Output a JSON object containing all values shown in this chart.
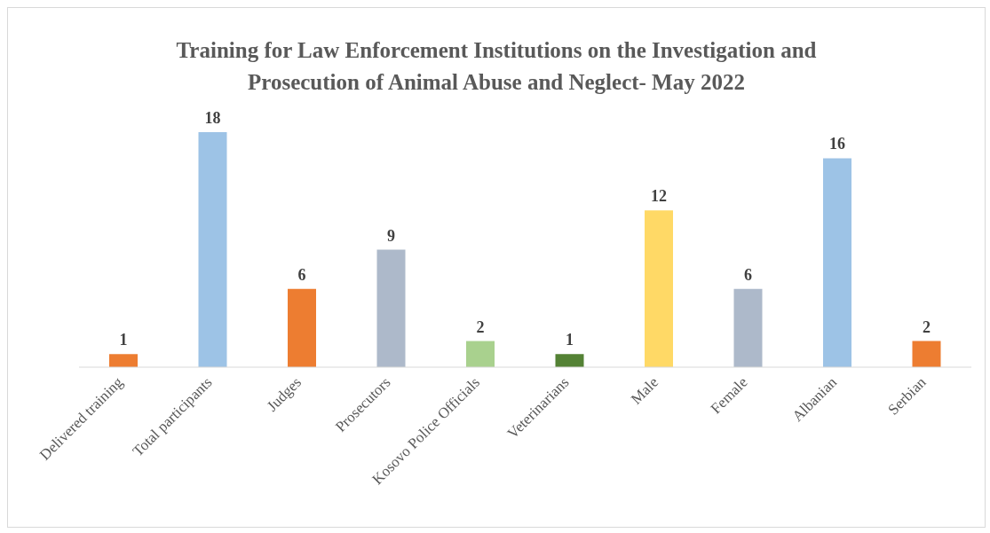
{
  "chart_data": {
    "type": "bar",
    "title": "Training for Law Enforcement Institutions on the Investigation and Prosecution of Animal Abuse and Neglect- May 2022",
    "categories": [
      "Delivered training",
      "Total participants",
      "Judges",
      "Prosecutors",
      "Kosovo Police Officials",
      "Veterinarians",
      "Male",
      "Female",
      "Albanian",
      "Serbian"
    ],
    "values": [
      1,
      18,
      6,
      9,
      2,
      1,
      12,
      6,
      16,
      2
    ],
    "colors": [
      "#ed7d31",
      "#9dc3e6",
      "#ed7d31",
      "#adb9ca",
      "#a9d18e",
      "#548235",
      "#ffd966",
      "#adb9ca",
      "#9dc3e6",
      "#ed7d31"
    ],
    "data_labels": true,
    "grid": false,
    "legend": false
  }
}
